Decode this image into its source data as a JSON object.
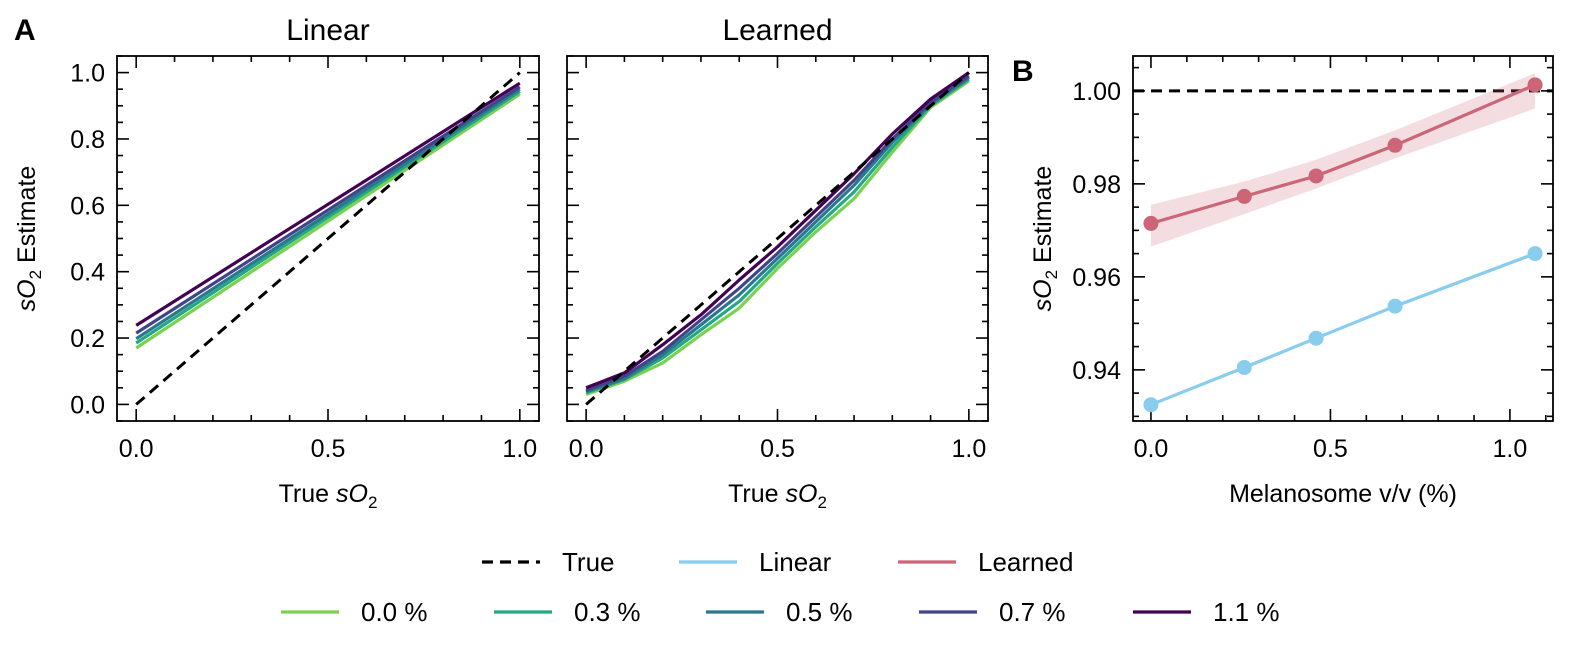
{
  "panel_labels": {
    "a": "A",
    "b": "B"
  },
  "legend": {
    "row1": [
      {
        "label": "True",
        "color": "#000000",
        "dashed": true
      },
      {
        "label": "Linear",
        "color": "#88ccee",
        "dashed": false
      },
      {
        "label": "Learned",
        "color": "#cc6677",
        "dashed": false
      }
    ],
    "row2": [
      {
        "label": "0.0 %",
        "color": "#7ad151"
      },
      {
        "label": "0.3 %",
        "color": "#22a884"
      },
      {
        "label": "0.5 %",
        "color": "#2a788e"
      },
      {
        "label": "0.7 %",
        "color": "#414487"
      },
      {
        "label": "1.1 %",
        "color": "#440154"
      }
    ]
  },
  "chart_data": [
    {
      "type": "line",
      "title": "Linear",
      "xlabel": "True sO2",
      "ylabel": "sO2 Estimate",
      "xlim": [
        -0.05,
        1.05
      ],
      "ylim": [
        -0.05,
        1.05
      ],
      "xticks": [
        "0.0",
        "0.5",
        "1.0"
      ],
      "yticks": [
        "0.0",
        "0.2",
        "0.4",
        "0.6",
        "0.8",
        "1.0"
      ],
      "x": [
        0.0,
        1.0
      ],
      "series": [
        {
          "name": "True",
          "color": "#000000",
          "dashed": true,
          "values": [
            0.0,
            1.0
          ]
        },
        {
          "name": "0.0 %",
          "color": "#7ad151",
          "values": [
            0.17,
            0.935
          ]
        },
        {
          "name": "0.3 %",
          "color": "#22a884",
          "values": [
            0.185,
            0.943
          ]
        },
        {
          "name": "0.5 %",
          "color": "#2a788e",
          "values": [
            0.198,
            0.95
          ]
        },
        {
          "name": "0.7 %",
          "color": "#414487",
          "values": [
            0.215,
            0.957
          ]
        },
        {
          "name": "1.1 %",
          "color": "#440154",
          "values": [
            0.238,
            0.968
          ]
        }
      ]
    },
    {
      "type": "line",
      "title": "Learned",
      "xlabel": "True sO2",
      "ylabel": "",
      "xlim": [
        -0.05,
        1.05
      ],
      "ylim": [
        -0.05,
        1.05
      ],
      "xticks": [
        "0.0",
        "0.5",
        "1.0"
      ],
      "yticks": [],
      "x": [
        0.0,
        0.1,
        0.2,
        0.3,
        0.4,
        0.5,
        0.6,
        0.7,
        0.8,
        0.9,
        1.0
      ],
      "series": [
        {
          "name": "True",
          "color": "#000000",
          "dashed": true,
          "values": [
            0.0,
            0.1,
            0.2,
            0.3,
            0.4,
            0.5,
            0.6,
            0.7,
            0.8,
            0.9,
            1.0
          ]
        },
        {
          "name": "0.0 %",
          "color": "#7ad151",
          "values": [
            0.03,
            0.07,
            0.125,
            0.21,
            0.29,
            0.41,
            0.52,
            0.62,
            0.76,
            0.895,
            0.975
          ]
        },
        {
          "name": "0.3 %",
          "color": "#22a884",
          "values": [
            0.035,
            0.075,
            0.14,
            0.225,
            0.31,
            0.425,
            0.535,
            0.64,
            0.775,
            0.9,
            0.98
          ]
        },
        {
          "name": "0.5 %",
          "color": "#2a788e",
          "values": [
            0.038,
            0.078,
            0.15,
            0.24,
            0.33,
            0.44,
            0.55,
            0.66,
            0.79,
            0.905,
            0.985
          ]
        },
        {
          "name": "0.7 %",
          "color": "#414487",
          "values": [
            0.042,
            0.085,
            0.16,
            0.255,
            0.35,
            0.455,
            0.565,
            0.675,
            0.8,
            0.91,
            0.99
          ]
        },
        {
          "name": "1.1 %",
          "color": "#440154",
          "values": [
            0.05,
            0.095,
            0.18,
            0.27,
            0.375,
            0.475,
            0.585,
            0.695,
            0.815,
            0.92,
            1.0
          ]
        }
      ]
    },
    {
      "type": "line",
      "title": "",
      "xlabel": "Melanosome v/v (%)",
      "ylabel": "sO2 Estimate",
      "xlim": [
        -0.05,
        1.12
      ],
      "ylim": [
        0.929,
        1.0075
      ],
      "xticks": [
        "0.0",
        "0.5",
        "1.0"
      ],
      "yticks": [
        "0.94",
        "0.96",
        "0.98",
        "1.00"
      ],
      "x": [
        0.0,
        0.26,
        0.46,
        0.68,
        1.07
      ],
      "reference_line": {
        "name": "True",
        "value": 1.0,
        "dashed": true,
        "color": "#000000"
      },
      "series": [
        {
          "name": "Linear",
          "color": "#88ccee",
          "values": [
            0.9325,
            0.9405,
            0.9468,
            0.9537,
            0.965
          ]
        },
        {
          "name": "Learned",
          "color": "#cc6677",
          "values": [
            0.9715,
            0.9773,
            0.9817,
            0.9883,
            1.0013
          ],
          "band_lower": [
            0.9665,
            0.9735,
            0.979,
            0.9855,
            0.9962
          ],
          "band_upper": [
            0.9755,
            0.9805,
            0.9852,
            0.9915,
            1.0038
          ]
        }
      ]
    }
  ]
}
